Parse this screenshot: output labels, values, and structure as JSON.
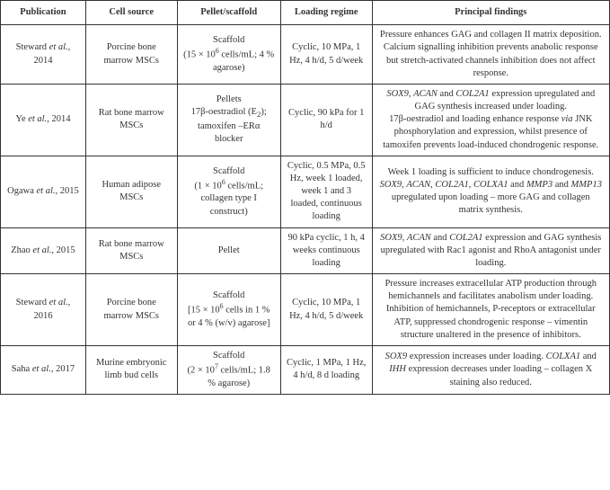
{
  "table": {
    "columns": [
      {
        "label": "Publication",
        "class": "col-pub"
      },
      {
        "label": "Cell source",
        "class": "col-cell"
      },
      {
        "label": "Pellet/scaffold",
        "class": "col-pellet"
      },
      {
        "label": "Loading regime",
        "class": "col-loading"
      },
      {
        "label": "Principal findings",
        "class": "col-findings"
      }
    ],
    "rows": [
      {
        "publication": "Steward <i>et al.</i>, 2014",
        "cell_source": "Porcine bone marrow MSCs",
        "pellet": "Scaffold<br>(15 × 10<span class=\"sup\">6</span> cells/mL; 4 % agarose)",
        "loading": "Cyclic, 10 MPa, 1 Hz, 4 h/d, 5 d/week",
        "findings": "Pressure enhances GAG and collagen II matrix deposition.<br>Calcium signalling inhibition prevents anabolic response but stretch-activated channels inhibition does not affect response."
      },
      {
        "publication": "Ye <i>et al.</i>, 2014",
        "cell_source": "Rat bone marrow MSCs",
        "pellet": "Pellets<br>17β-oestradiol (E<sub>2</sub>); tamoxifen –ERα blocker",
        "loading": "Cyclic, 90 kPa for 1 h/d",
        "findings": "<i>SOX9</i>, <i>ACAN</i> and <i>COL2A1</i> expression upregulated and GAG synthesis increased under loading.<br>17β-oestradiol and loading enhance response <i>via</i> JNK phosphorylation and expression, whilst presence of tamoxifen prevents load-induced chondrogenic response."
      },
      {
        "publication": "Ogawa <i>et al.</i>, 2015",
        "cell_source": "Human adipose MSCs",
        "pellet": "Scaffold<br>(1 × 10<span class=\"sup\">6</span> cells/mL; collagen type I construct)",
        "loading": "Cyclic, 0.5 MPa, 0.5 Hz, week 1 loaded, week 1 and 3 loaded, continuous loading",
        "findings": "Week 1 loading is sufficient to induce chondrogenesis.<br><i>SOX9</i>, <i>ACAN</i>, <i>COL2A1</i>, <i>COLXA1</i> and <i>MMP3</i> and <i>MMP13</i> upregulated upon loading – more GAG and collagen matrix synthesis."
      },
      {
        "publication": "Zhao <i>et al.</i>, 2015",
        "cell_source": "Rat bone marrow MSCs",
        "pellet": "Pellet",
        "loading": "90 kPa cyclic, 1 h, 4 weeks continuous loading",
        "findings": "<i>SOX9</i>, <i>ACAN</i> and <i>COL2A1</i> expression and GAG synthesis upregulated with Rac1 agonist and RhoA antagonist under loading."
      },
      {
        "publication": "Steward <i>et al.</i>, 2016",
        "cell_source": "Porcine bone marrow MSCs",
        "pellet": "Scaffold<br>[15 × 10<span class=\"sup\">6</span> cells in 1 % or 4 % (w/v) agarose]",
        "loading": "Cyclic, 10 MPa, 1 Hz, 4 h/d, 5 d/week",
        "findings": "Pressure increases extracellular ATP production through hemichannels and facilitates anabolism under loading.<br>Inhibition of hemichannels, P-receptors or extracellular ATP, suppressed chondrogenic response – vimentin structure unaltered in the presence of inhibitors."
      },
      {
        "publication": "Saha <i>et al.</i>, 2017",
        "cell_source": "Murine embryonic limb bud cells",
        "pellet": "Scaffold<br>(2 × 10<span class=\"sup\">7</span> cells/mL; 1.8 % agarose)",
        "loading": "Cyclic, 1 MPa, 1 Hz, 4 h/d, 8 d loading",
        "findings": "<i>SOX9</i> expression increases under loading. <i>COLXA1</i> and <i>IHH</i> expression decreases under loading – collagen X staining also reduced."
      }
    ]
  }
}
